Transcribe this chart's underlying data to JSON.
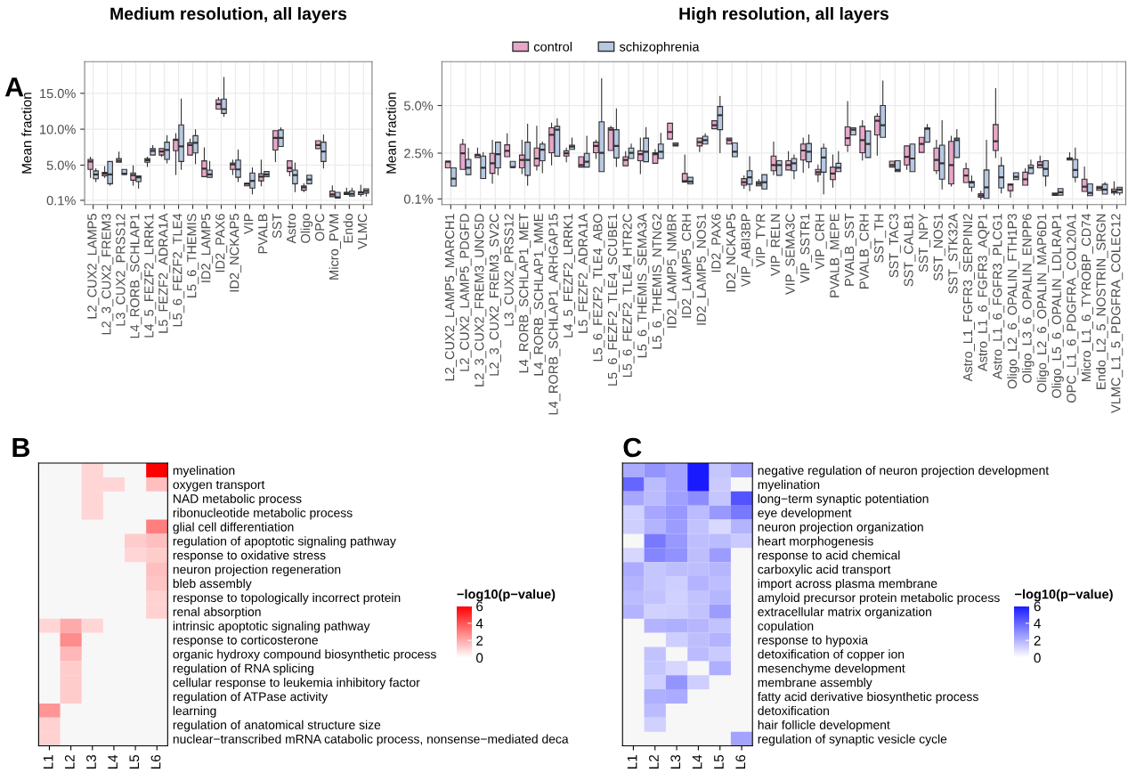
{
  "chart_data": [
    {
      "type": "box",
      "title": "Medium resolution, all layers",
      "ylabel": "Mean fraction",
      "annotations": [
        "A"
      ],
      "grid": true,
      "categories": [
        "L2_CUX2_LAMP5",
        "L2_3_CUX2_FREM3",
        "L3_CUX2_PRSS12",
        "L4_RORB_SCHLAP1",
        "L4_5_FEZF2_LRRK1",
        "L5_FEZF2_ADRA1A",
        "L5_6_FEZF2_TLE4",
        "L5_6_THEMIS",
        "ID2_LAMP5",
        "ID2_PAX6",
        "ID2_NCKAP5",
        "VIP",
        "PVALB",
        "SST",
        "Astro",
        "Oligo",
        "OPC",
        "Micro_PVM",
        "Endo",
        "VLMC"
      ],
      "ylim": [
        -0.5,
        19.4
      ],
      "yticks": [
        {
          "value": 0.1,
          "label": "0.1%"
        },
        {
          "value": 5,
          "label": "5.0%"
        },
        {
          "value": 10,
          "label": "10.0%"
        },
        {
          "value": 15,
          "label": "15.0%"
        }
      ],
      "series": [
        {
          "color": "#e8a6c9",
          "boxes": [
            {
              "low": 3.3,
              "q1": 4.4,
              "median": 5.5,
              "q3": 5.8,
              "high": 6.1
            },
            {
              "low": 3.3,
              "q1": 3.5,
              "median": 3.8,
              "q3": 4.0,
              "high": 4.8
            },
            {
              "low": 5.4,
              "q1": 5.4,
              "median": 5.6,
              "q3": 5.9,
              "high": 6.8
            },
            {
              "low": 2.2,
              "q1": 2.9,
              "median": 3.6,
              "q3": 3.9,
              "high": 4.9
            },
            {
              "low": 4.8,
              "q1": 5.4,
              "median": 5.7,
              "q3": 5.9,
              "high": 6.1
            },
            {
              "low": 6.2,
              "q1": 6.4,
              "median": 6.9,
              "q3": 7.3,
              "high": 7.3
            },
            {
              "low": 3.7,
              "q1": 7.0,
              "median": 8.5,
              "q3": 8.6,
              "high": 9.4
            },
            {
              "low": 6.4,
              "q1": 6.4,
              "median": 7.8,
              "q3": 8.1,
              "high": 8.6
            },
            {
              "low": 3.4,
              "q1": 3.4,
              "median": 4.5,
              "q3": 5.6,
              "high": 7.4
            },
            {
              "low": 12.8,
              "q1": 12.8,
              "median": 13.5,
              "q3": 14.1,
              "high": 14.4
            },
            {
              "low": 3.7,
              "q1": 4.4,
              "median": 5.1,
              "q3": 5.3,
              "high": 5.7
            },
            {
              "low": 2.1,
              "q1": 2.1,
              "median": 2.4,
              "q3": 2.5,
              "high": 2.5
            },
            {
              "low": 2.1,
              "q1": 2.8,
              "median": 3.4,
              "q3": 3.8,
              "high": 5.7
            },
            {
              "low": 5.5,
              "q1": 7.1,
              "median": 8.8,
              "q3": 9.8,
              "high": 9.8
            },
            {
              "low": 3.5,
              "q1": 4.1,
              "median": 4.6,
              "q3": 5.6,
              "high": 5.6
            },
            {
              "low": 1.3,
              "q1": 1.5,
              "median": 1.9,
              "q3": 2.1,
              "high": 2.4
            },
            {
              "low": 7.3,
              "q1": 7.3,
              "median": 7.8,
              "q3": 8.4,
              "high": 8.4
            },
            {
              "low": 0.6,
              "q1": 0.6,
              "median": 0.9,
              "q3": 1.4,
              "high": 2.1
            },
            {
              "low": 0.9,
              "q1": 0.9,
              "median": 1.1,
              "q3": 1.2,
              "high": 1.8
            },
            {
              "low": 0.7,
              "q1": 0.9,
              "median": 1.2,
              "q3": 1.3,
              "high": 2.2
            }
          ]
        },
        {
          "color": "#b7c8e2",
          "boxes": [
            {
              "low": 2.7,
              "q1": 3.1,
              "median": 3.7,
              "q3": 4.2,
              "high": 4.5
            },
            {
              "low": 2.2,
              "q1": 2.4,
              "median": 3.7,
              "q3": 5.5,
              "high": 5.5
            },
            {
              "low": 3.7,
              "q1": 3.7,
              "median": 3.8,
              "q3": 4.4,
              "high": 4.4
            },
            {
              "low": 1.8,
              "q1": 2.7,
              "median": 3.3,
              "q3": 3.5,
              "high": 3.5
            },
            {
              "low": 6.4,
              "q1": 6.4,
              "median": 7.0,
              "q3": 7.3,
              "high": 7.7
            },
            {
              "low": 5.3,
              "q1": 5.8,
              "median": 7.1,
              "q3": 8.2,
              "high": 9.1
            },
            {
              "low": 4.4,
              "q1": 5.5,
              "median": 7.6,
              "q3": 10.6,
              "high": 14.2
            },
            {
              "low": 5.2,
              "q1": 6.7,
              "median": 8.1,
              "q3": 9.1,
              "high": 9.9
            },
            {
              "low": 3.3,
              "q1": 3.3,
              "median": 3.7,
              "q3": 4.3,
              "high": 5.5
            },
            {
              "low": 11.8,
              "q1": 12.2,
              "median": 12.8,
              "q3": 14.2,
              "high": 17.2
            },
            {
              "low": 2.7,
              "q1": 3.3,
              "median": 4.4,
              "q3": 5.7,
              "high": 7.1
            },
            {
              "low": 1.0,
              "q1": 1.8,
              "median": 2.8,
              "q3": 3.9,
              "high": 4.6
            },
            {
              "low": 3.4,
              "q1": 3.4,
              "median": 3.7,
              "q3": 4.1,
              "high": 4.1
            },
            {
              "low": 7.6,
              "q1": 7.6,
              "median": 8.8,
              "q3": 9.9,
              "high": 10.2
            },
            {
              "low": 1.3,
              "q1": 2.4,
              "median": 3.6,
              "q3": 4.3,
              "high": 5.3
            },
            {
              "low": 2.4,
              "q1": 2.4,
              "median": 3.0,
              "q3": 3.6,
              "high": 3.6
            },
            {
              "low": 4.6,
              "q1": 5.5,
              "median": 6.9,
              "q3": 8.2,
              "high": 9.2
            },
            {
              "low": 0.4,
              "q1": 0.4,
              "median": 0.5,
              "q3": 1.2,
              "high": 1.2
            },
            {
              "low": 0.7,
              "q1": 0.7,
              "median": 1.0,
              "q3": 1.4,
              "high": 1.8
            },
            {
              "low": 0.7,
              "q1": 1.1,
              "median": 1.4,
              "q3": 1.7,
              "high": 1.7
            }
          ]
        }
      ]
    },
    {
      "type": "box",
      "title": "High resolution, all layers",
      "ylabel": "Mean fraction",
      "grid": true,
      "legend": "top",
      "categories": [
        "L2_CUX2_LAMP5_MARCH1",
        "L2_CUX2_LAMP5_PDGFD",
        "L2_3_CUX2_FREM3_UNC5D",
        "L2_3_CUX2_FREM3_SV2C",
        "L3_CUX2_PRSS12",
        "L4_RORB_SCHLAP1_MET",
        "L4_RORB_SCHLAP1_MME",
        "L4_RORB_SCHLAP1_ARHGAP15",
        "L4_5_FEZF2_LRRK1",
        "L5_FEZF2_ADRA1A",
        "L5_6_FEZF2_TLE4_ABO",
        "L5_6_FEZF2_TLE4_SCUBE1",
        "L5_6_FEZF2_TLE4_HTR2C",
        "L5_6_THEMIS_SEMA3A",
        "L5_6_THEMIS_NTNG2",
        "ID2_LAMP5_NMBR",
        "ID2_LAMP5_CRH",
        "ID2_LAMP5_NOS1",
        "ID2_PAX6",
        "ID2_NCKAP5",
        "VIP_ABI3BP",
        "VIP_TYR",
        "VIP_RELN",
        "VIP_SEMA3C",
        "VIP_SSTR1",
        "VIP_CRH",
        "PVALB_MEPE",
        "PVALB_SST",
        "PVALB_CRH",
        "SST_TH",
        "SST_TAC3",
        "SST_CALB1",
        "SST_NPY",
        "SST_NOS1",
        "SST_STK32A",
        "Astro_L1_FGFR3_SERPINI2",
        "Astro_L1_6_FGFR3_AQP1",
        "Astro_L1_6_FGFR3_PLCG1",
        "Oligo_L2_6_OPALIN_FTH1P3",
        "Oligo_L3_6_OPALIN_ENPP6",
        "Oligo_L2_6_OPALIN_MAP6D1",
        "Oligo_L5_6_OPALIN_LDLRAP1",
        "OPC_L1_6_PDGFRA_COL20A1",
        "Micro_L1_6_TYROBP_CD74",
        "Endo_L2_5_NOSTRIN_SRGN",
        "VLMC_L1_5_PDGFRA_COLEC12"
      ],
      "ylim": [
        -0.2,
        7.3
      ],
      "yticks": [
        {
          "value": 0.1,
          "label": "0.1%"
        },
        {
          "value": 2.5,
          "label": "2.5%"
        },
        {
          "value": 5,
          "label": "5.0%"
        }
      ],
      "series": [
        {
          "name": "control",
          "color": "#e8a6c9",
          "boxes": [
            {
              "low": 1.73,
              "q1": 1.73,
              "median": 2.05,
              "q3": 2.08,
              "high": 2.08
            },
            {
              "low": 1.65,
              "q1": 1.65,
              "median": 2.49,
              "q3": 2.97,
              "high": 3.22
            },
            {
              "low": 2.27,
              "q1": 2.27,
              "median": 2.4,
              "q3": 2.44,
              "high": 2.77
            },
            {
              "low": 0.93,
              "q1": 1.44,
              "median": 1.97,
              "q3": 2.49,
              "high": 3.18
            },
            {
              "low": 2.31,
              "q1": 2.31,
              "median": 2.62,
              "q3": 2.94,
              "high": 3.51
            },
            {
              "low": 1.43,
              "q1": 1.73,
              "median": 2.14,
              "q3": 2.4,
              "high": 3.18
            },
            {
              "low": 1.62,
              "q1": 1.84,
              "median": 2.22,
              "q3": 2.77,
              "high": 3.91
            },
            {
              "low": 1.88,
              "q1": 2.52,
              "median": 3.46,
              "q3": 3.83,
              "high": 4.07
            },
            {
              "low": 2.05,
              "q1": 2.35,
              "median": 2.49,
              "q3": 2.62,
              "high": 2.77
            },
            {
              "low": 1.77,
              "q1": 1.77,
              "median": 1.88,
              "q3": 2.31,
              "high": 2.31
            },
            {
              "low": 2.22,
              "q1": 2.52,
              "median": 2.88,
              "q3": 3.08,
              "high": 3.18
            },
            {
              "low": 2.64,
              "q1": 2.64,
              "median": 3.73,
              "q3": 3.83,
              "high": 3.91
            },
            {
              "low": 1.84,
              "q1": 1.84,
              "median": 2.14,
              "q3": 2.31,
              "high": 2.58
            },
            {
              "low": 1.43,
              "q1": 2.1,
              "median": 2.45,
              "q3": 2.62,
              "high": 3.29
            },
            {
              "low": 1.97,
              "q1": 1.97,
              "median": 2.45,
              "q3": 2.52,
              "high": 2.68
            },
            {
              "low": 3.24,
              "q1": 3.24,
              "median": 3.61,
              "q3": 4.07,
              "high": 4.07
            },
            {
              "low": 0.98,
              "q1": 0.98,
              "median": 1.04,
              "q3": 1.43,
              "high": 2.4
            },
            {
              "low": 2.58,
              "q1": 2.88,
              "median": 3.08,
              "q3": 3.29,
              "high": 3.29
            },
            {
              "low": 3.78,
              "q1": 3.78,
              "median": 3.97,
              "q3": 4.2,
              "high": 4.2
            },
            {
              "low": 2.98,
              "q1": 2.98,
              "median": 3.18,
              "q3": 3.29,
              "high": 3.29
            },
            {
              "low": 0.66,
              "q1": 0.82,
              "median": 0.98,
              "q3": 1.16,
              "high": 1.3
            },
            {
              "low": 0.78,
              "q1": 0.78,
              "median": 0.89,
              "q3": 1.0,
              "high": 1.11
            },
            {
              "low": 1.37,
              "q1": 1.58,
              "median": 1.88,
              "q3": 2.35,
              "high": 3.08
            },
            {
              "low": 1.62,
              "q1": 1.62,
              "median": 1.88,
              "q3": 2.1,
              "high": 2.58
            },
            {
              "low": 1.5,
              "q1": 2.14,
              "median": 2.64,
              "q3": 2.98,
              "high": 3.29
            },
            {
              "low": 1.01,
              "q1": 1.37,
              "median": 1.5,
              "q3": 1.65,
              "high": 1.88
            },
            {
              "low": 0.71,
              "q1": 1.11,
              "median": 1.43,
              "q3": 1.77,
              "high": 2.4
            },
            {
              "low": 2.58,
              "q1": 2.91,
              "median": 3.29,
              "q3": 3.88,
              "high": 5.21
            },
            {
              "low": 2.14,
              "q1": 2.52,
              "median": 3.18,
              "q3": 3.91,
              "high": 4.2
            },
            {
              "low": 2.4,
              "q1": 3.46,
              "median": 4.2,
              "q3": 4.44,
              "high": 4.56
            },
            {
              "low": 1.77,
              "q1": 1.77,
              "median": 1.88,
              "q3": 2.08,
              "high": 2.08
            },
            {
              "low": 1.65,
              "q1": 1.88,
              "median": 2.31,
              "q3": 2.88,
              "high": 2.88
            },
            {
              "low": 2.54,
              "q1": 2.54,
              "median": 2.98,
              "q3": 3.33,
              "high": 3.33
            },
            {
              "low": 1.43,
              "q1": 1.58,
              "median": 2.14,
              "q3": 2.77,
              "high": 3.18
            },
            {
              "low": 0.77,
              "q1": 0.89,
              "median": 1.88,
              "q3": 3.12,
              "high": 3.39
            },
            {
              "low": 0.96,
              "q1": 0.96,
              "median": 1.33,
              "q3": 1.68,
              "high": 1.97
            },
            {
              "low": 0.08,
              "q1": 0.19,
              "median": 0.28,
              "q3": 0.37,
              "high": 0.5
            },
            {
              "low": 2.27,
              "q1": 2.64,
              "median": 3.12,
              "q3": 4.0,
              "high": 5.89
            },
            {
              "low": 0.19,
              "q1": 0.53,
              "median": 0.85,
              "q3": 0.89,
              "high": 0.89
            },
            {
              "low": 0.82,
              "q1": 0.82,
              "median": 1.13,
              "q3": 1.5,
              "high": 1.68
            },
            {
              "low": 1.73,
              "q1": 1.73,
              "median": 1.88,
              "q3": 2.05,
              "high": 2.35
            },
            {
              "low": 0.28,
              "q1": 0.28,
              "median": 0.35,
              "q3": 0.41,
              "high": 0.41
            },
            {
              "low": 2.14,
              "q1": 2.14,
              "median": 2.2,
              "q3": 2.25,
              "high": 2.52
            },
            {
              "low": 0.49,
              "q1": 0.49,
              "median": 0.74,
              "q3": 1.13,
              "high": 1.77
            },
            {
              "low": 0.55,
              "q1": 0.55,
              "median": 0.67,
              "q3": 0.76,
              "high": 0.76
            },
            {
              "low": 0.32,
              "q1": 0.41,
              "median": 0.5,
              "q3": 0.62,
              "high": 1.0
            }
          ]
        },
        {
          "name": "schizophrenia",
          "color": "#b7c8e2",
          "boxes": [
            {
              "low": 0.77,
              "q1": 0.77,
              "median": 1.16,
              "q3": 1.73,
              "high": 1.73
            },
            {
              "low": 1.37,
              "q1": 1.37,
              "median": 1.73,
              "q3": 2.17,
              "high": 2.75
            },
            {
              "low": 1.17,
              "q1": 1.17,
              "median": 1.73,
              "q3": 2.35,
              "high": 2.53
            },
            {
              "low": 1.37,
              "q1": 1.73,
              "median": 2.45,
              "q3": 3.08,
              "high": 3.08
            },
            {
              "low": 1.76,
              "q1": 1.76,
              "median": 1.77,
              "q3": 2.07,
              "high": 2.07
            },
            {
              "low": 0.82,
              "q1": 1.34,
              "median": 2.14,
              "q3": 3.08,
              "high": 4.02
            },
            {
              "low": 1.47,
              "q1": 2.1,
              "median": 2.68,
              "q3": 2.98,
              "high": 3.08
            },
            {
              "low": 2.34,
              "q1": 2.34,
              "median": 3.73,
              "q3": 3.91,
              "high": 4.31
            },
            {
              "low": 2.7,
              "q1": 2.7,
              "median": 2.84,
              "q3": 2.92,
              "high": 3.29
            },
            {
              "low": 1.77,
              "q1": 1.77,
              "median": 2.05,
              "q3": 2.49,
              "high": 3.39
            },
            {
              "low": 1.53,
              "q1": 1.53,
              "median": 2.52,
              "q3": 4.15,
              "high": 6.41
            },
            {
              "low": 1.8,
              "q1": 2.25,
              "median": 2.88,
              "q3": 3.73,
              "high": 4.82
            },
            {
              "low": 2.22,
              "q1": 2.22,
              "median": 2.52,
              "q3": 2.77,
              "high": 2.98
            },
            {
              "low": 2.05,
              "q1": 2.05,
              "median": 2.58,
              "q3": 3.29,
              "high": 3.84
            },
            {
              "low": 2.22,
              "q1": 2.22,
              "median": 2.58,
              "q3": 2.98,
              "high": 3.54
            },
            {
              "low": 2.88,
              "q1": 2.88,
              "median": 2.94,
              "q3": 3.04,
              "high": 3.04
            },
            {
              "low": 0.89,
              "q1": 0.89,
              "median": 1.01,
              "q3": 1.23,
              "high": 1.23
            },
            {
              "low": 2.98,
              "q1": 2.98,
              "median": 3.18,
              "q3": 3.39,
              "high": 3.51
            },
            {
              "low": 2.52,
              "q1": 3.73,
              "median": 4.49,
              "q3": 4.95,
              "high": 5.48
            },
            {
              "low": 2.31,
              "q1": 2.31,
              "median": 2.58,
              "q3": 3.04,
              "high": 3.04
            },
            {
              "low": 0.53,
              "q1": 0.87,
              "median": 1.23,
              "q3": 1.58,
              "high": 2.31
            },
            {
              "low": 0.62,
              "q1": 0.62,
              "median": 0.98,
              "q3": 1.37,
              "high": 1.37
            },
            {
              "low": 1.34,
              "q1": 1.34,
              "median": 1.88,
              "q3": 2.1,
              "high": 2.1
            },
            {
              "low": 1.16,
              "q1": 1.58,
              "median": 1.97,
              "q3": 2.22,
              "high": 2.4
            },
            {
              "low": 1.73,
              "q1": 2.05,
              "median": 2.58,
              "q3": 3.01,
              "high": 3.45
            },
            {
              "low": 0.37,
              "q1": 1.5,
              "median": 2.27,
              "q3": 2.77,
              "high": 2.98
            },
            {
              "low": 1.53,
              "q1": 1.53,
              "median": 1.73,
              "q3": 1.97,
              "high": 2.58
            },
            {
              "low": 3.46,
              "q1": 3.46,
              "median": 3.73,
              "q3": 3.83,
              "high": 3.83
            },
            {
              "low": 2.27,
              "q1": 2.27,
              "median": 2.98,
              "q3": 3.66,
              "high": 3.66
            },
            {
              "low": 3.33,
              "q1": 3.33,
              "median": 3.97,
              "q3": 5.0,
              "high": 6.28
            },
            {
              "low": 1.53,
              "q1": 1.53,
              "median": 1.62,
              "q3": 2.1,
              "high": 2.1
            },
            {
              "low": 1.53,
              "q1": 1.53,
              "median": 2.22,
              "q3": 2.98,
              "high": 2.98
            },
            {
              "low": 3.08,
              "q1": 3.08,
              "median": 3.78,
              "q3": 3.83,
              "high": 4.0
            },
            {
              "low": 0.62,
              "q1": 1.13,
              "median": 1.97,
              "q3": 2.92,
              "high": 4.2
            },
            {
              "low": 2.27,
              "q1": 2.27,
              "median": 3.18,
              "q3": 3.29,
              "high": 3.73
            },
            {
              "low": 0.5,
              "q1": 0.71,
              "median": 0.96,
              "q3": 1.01,
              "high": 1.3
            },
            {
              "low": 0.13,
              "q1": 0.13,
              "median": 0.71,
              "q3": 1.62,
              "high": 3.18
            },
            {
              "low": 0.41,
              "q1": 0.68,
              "median": 1.23,
              "q3": 1.84,
              "high": 2.27
            },
            {
              "low": 1.11,
              "q1": 1.11,
              "median": 1.26,
              "q3": 1.47,
              "high": 1.47
            },
            {
              "low": 1.43,
              "q1": 1.43,
              "median": 1.73,
              "q3": 1.88,
              "high": 2.14
            },
            {
              "low": 0.78,
              "q1": 1.3,
              "median": 1.68,
              "q3": 2.1,
              "high": 2.1
            },
            {
              "low": 0.3,
              "q1": 0.3,
              "median": 0.45,
              "q3": 0.64,
              "high": 0.64
            },
            {
              "low": 1.0,
              "q1": 1.23,
              "median": 1.62,
              "q3": 2.17,
              "high": 2.77
            },
            {
              "low": 0.27,
              "q1": 0.27,
              "median": 0.41,
              "q3": 0.89,
              "high": 0.89
            },
            {
              "low": 0.35,
              "q1": 0.35,
              "median": 0.59,
              "q3": 0.87,
              "high": 0.96
            },
            {
              "low": 0.32,
              "q1": 0.41,
              "median": 0.59,
              "q3": 0.71,
              "high": 0.71
            }
          ]
        }
      ]
    },
    {
      "type": "heatmap",
      "annotations": [
        "B"
      ],
      "categories": [
        "L1",
        "L2",
        "L3",
        "L4",
        "L5",
        "L6"
      ],
      "y_categories": [
        "myelination",
        "oxygen transport",
        "NAD metabolic process",
        "ribonucleotide metabolic process",
        "glial cell differentiation",
        "regulation of apoptotic signaling pathway",
        "response to oxidative stress",
        "neuron projection regeneration",
        "bleb assembly",
        "response to topologically incorrect protein",
        "renal absorption",
        "intrinsic apoptotic signaling pathway",
        "response to corticosterone",
        "organic hydroxy compound biosynthetic process",
        "regulation of RNA splicing",
        "cellular response to leukemia inhibitory factor",
        "regulation of ATPase activity",
        "learning",
        "regulation of anatomical structure size",
        "nuclear−transcribed mRNA catabolic process, nonsense−mediated deca"
      ],
      "cells": [
        [
          null,
          null,
          1,
          null,
          null,
          6
        ],
        [
          null,
          null,
          1,
          1,
          null,
          1.5
        ],
        [
          null,
          null,
          1,
          null,
          null,
          null
        ],
        [
          null,
          null,
          1,
          null,
          null,
          null
        ],
        [
          null,
          null,
          null,
          null,
          null,
          3
        ],
        [
          null,
          null,
          null,
          null,
          1.2,
          1.5
        ],
        [
          null,
          null,
          null,
          null,
          1,
          1.2
        ],
        [
          null,
          null,
          null,
          null,
          null,
          1.5
        ],
        [
          null,
          null,
          null,
          null,
          null,
          1.4
        ],
        [
          null,
          null,
          null,
          null,
          null,
          1.1
        ],
        [
          null,
          null,
          null,
          null,
          null,
          1.1
        ],
        [
          1,
          2,
          1,
          null,
          null,
          null
        ],
        [
          null,
          2.7,
          null,
          null,
          null,
          null
        ],
        [
          null,
          1.7,
          null,
          null,
          null,
          null
        ],
        [
          null,
          1.2,
          null,
          null,
          null,
          null
        ],
        [
          null,
          1.2,
          null,
          null,
          null,
          null
        ],
        [
          null,
          1.2,
          null,
          null,
          null,
          null
        ],
        [
          2.5,
          null,
          null,
          null,
          null,
          null
        ],
        [
          1.1,
          null,
          null,
          null,
          null,
          null
        ],
        [
          1.1,
          null,
          null,
          null,
          null,
          null
        ]
      ],
      "clim": [
        0,
        6
      ],
      "cticks": [
        0,
        2,
        4,
        6
      ],
      "clabel": "−log10(p−value)",
      "colors": [
        "#ffffff",
        "#ff0000"
      ]
    },
    {
      "type": "heatmap",
      "annotations": [
        "C"
      ],
      "categories": [
        "L1",
        "L2",
        "L3",
        "L4",
        "L5",
        "L6"
      ],
      "y_categories": [
        "negative regulation of neuron projection development",
        "myelination",
        "long−term synaptic potentiation",
        "eye development",
        "neuron projection organization",
        "heart morphogenesis",
        "response to acid chemical",
        "carboxylic acid transport",
        "import across plasma membrane",
        "amyloid precursor protein metabolic process",
        "extracellular matrix organization",
        "copulation",
        "response to hypoxia",
        "detoxification of copper ion",
        "mesenchyme development",
        "membrane assembly",
        "fatty acid derivative biosynthetic process",
        "detoxification",
        "hair follicle development",
        "regulation of synaptic vesicle cycle"
      ],
      "cells": [
        [
          2.2,
          2.8,
          2.4,
          6,
          1.5,
          2.3
        ],
        [
          4,
          1.8,
          2.4,
          6,
          1.4,
          null
        ],
        [
          2.3,
          1.8,
          2.5,
          3,
          1.5,
          4.5
        ],
        [
          1.2,
          2.3,
          2.7,
          1.8,
          2.7,
          3.5
        ],
        [
          1.3,
          2,
          2.6,
          1.6,
          1,
          2
        ],
        [
          null,
          3.5,
          2.7,
          1.7,
          1.8,
          1.4
        ],
        [
          1.1,
          3.2,
          2.9,
          1.7,
          2.6,
          null
        ],
        [
          2.2,
          1.5,
          1.7,
          1.7,
          1.9,
          null
        ],
        [
          2,
          1.5,
          1.3,
          2,
          1.7,
          null
        ],
        [
          1.8,
          1.6,
          1.2,
          1.6,
          1.9,
          null
        ],
        [
          2,
          1.2,
          1.3,
          1.6,
          2.6,
          null
        ],
        [
          null,
          2,
          2.1,
          1.9,
          1.6,
          null
        ],
        [
          null,
          null,
          1.3,
          1.7,
          2,
          null
        ],
        [
          null,
          1.6,
          null,
          1.8,
          1.4,
          null
        ],
        [
          null,
          1.5,
          1.1,
          null,
          2.1,
          null
        ],
        [
          null,
          1.3,
          2.8,
          1.3,
          null,
          null
        ],
        [
          null,
          2.1,
          2.2,
          null,
          null,
          null
        ],
        [
          null,
          1.8,
          null,
          null,
          null,
          null
        ],
        [
          null,
          1.2,
          null,
          null,
          null,
          null
        ],
        [
          null,
          null,
          null,
          null,
          null,
          2.4
        ]
      ],
      "clim": [
        0,
        6
      ],
      "cticks": [
        0,
        2,
        4,
        6
      ],
      "clabel": "−log10(p−value)",
      "colors": [
        "#ffffff",
        "#1a1aff"
      ]
    }
  ]
}
